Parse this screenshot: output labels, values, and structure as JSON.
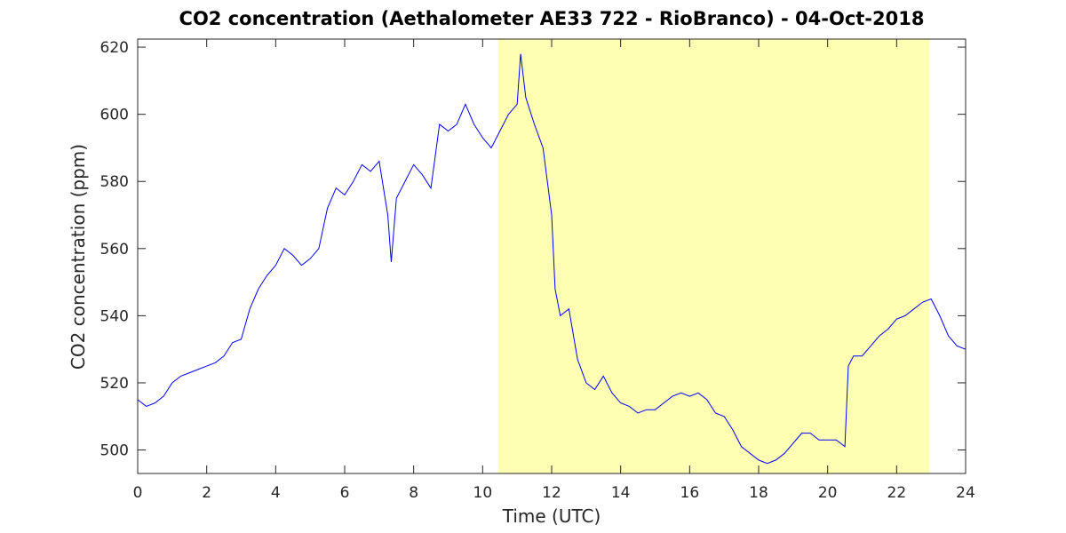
{
  "chart_data": {
    "type": "line",
    "title": "CO2 concentration (Aethalometer AE33 722 - RioBranco) - 04-Oct-2018",
    "xlabel": "Time (UTC)",
    "ylabel": "CO2 concentration (ppm)",
    "x": [
      0,
      0.25,
      0.5,
      0.75,
      1,
      1.25,
      1.5,
      1.75,
      2,
      2.25,
      2.5,
      2.75,
      3,
      3.25,
      3.5,
      3.75,
      4,
      4.25,
      4.5,
      4.75,
      5,
      5.25,
      5.5,
      5.75,
      6,
      6.25,
      6.5,
      6.75,
      7,
      7.25,
      7.35,
      7.5,
      7.75,
      8,
      8.25,
      8.5,
      8.75,
      9,
      9.25,
      9.5,
      9.75,
      10,
      10.25,
      10.5,
      10.75,
      11,
      11.1,
      11.25,
      11.5,
      11.75,
      12,
      12.1,
      12.25,
      12.5,
      12.75,
      13,
      13.25,
      13.5,
      13.75,
      14,
      14.25,
      14.5,
      14.75,
      15,
      15.25,
      15.5,
      15.75,
      16,
      16.25,
      16.5,
      16.75,
      17,
      17.25,
      17.5,
      17.75,
      18,
      18.25,
      18.5,
      18.75,
      19,
      19.25,
      19.5,
      19.75,
      20,
      20.25,
      20.5,
      20.6,
      20.75,
      21,
      21.25,
      21.5,
      21.75,
      22,
      22.25,
      22.5,
      22.75,
      23,
      23.25,
      23.5,
      23.75,
      24
    ],
    "values": [
      515,
      513,
      514,
      516,
      520,
      522,
      523,
      524,
      525,
      526,
      528,
      532,
      533,
      542,
      548,
      552,
      555,
      560,
      558,
      555,
      557,
      560,
      572,
      578,
      576,
      580,
      585,
      583,
      586,
      570,
      556,
      575,
      580,
      585,
      582,
      578,
      597,
      595,
      597,
      603,
      597,
      593,
      590,
      595,
      600,
      603,
      618,
      605,
      597,
      590,
      570,
      548,
      540,
      542,
      527,
      520,
      518,
      522,
      517,
      514,
      513,
      511,
      512,
      512,
      514,
      516,
      517,
      516,
      517,
      515,
      511,
      510,
      506,
      501,
      499,
      497,
      496,
      497,
      499,
      502,
      505,
      505,
      503,
      503,
      503,
      501,
      525,
      528,
      528,
      531,
      534,
      536,
      539,
      540,
      542,
      544,
      545,
      540,
      534,
      531,
      530
    ],
    "color": "#0000ff",
    "highlight_x": [
      10.45,
      22.95
    ],
    "highlight_color": "#ffffb3",
    "xlim": [
      0,
      24
    ],
    "xticks": [
      0,
      2,
      4,
      6,
      8,
      10,
      12,
      14,
      16,
      18,
      20,
      22,
      24
    ],
    "ylim": [
      493,
      622.4
    ],
    "yticks": [
      500,
      520,
      540,
      560,
      580,
      600,
      620
    ],
    "grid": false
  }
}
